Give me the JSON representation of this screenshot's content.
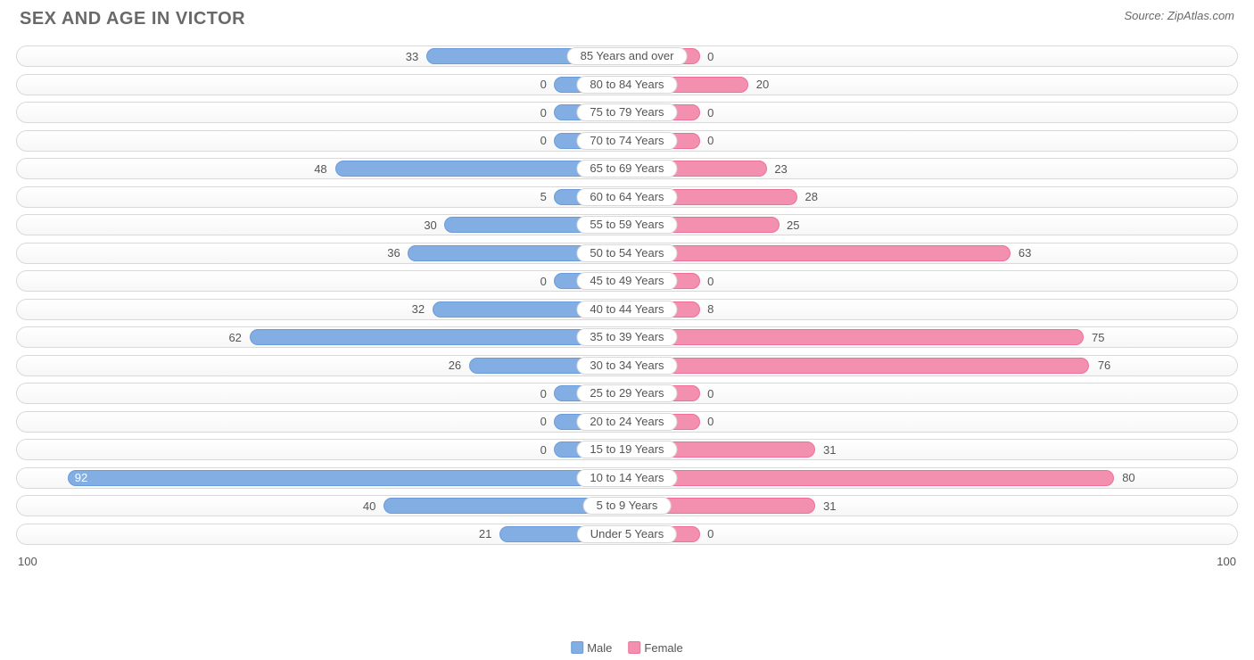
{
  "title": "SEX AND AGE IN VICTOR",
  "source": "Source: ZipAtlas.com",
  "chart": {
    "type": "population-pyramid-bar",
    "axis_max": 100,
    "axis_left_label": "100",
    "axis_right_label": "100",
    "min_bar_pct": 12,
    "colors": {
      "male_fill": "#82aee3",
      "male_border": "#6b9bd8",
      "female_fill": "#f390b0",
      "female_border": "#ef6f98",
      "track_border": "#d9d9d9",
      "text": "#555555",
      "title_text": "#696969"
    },
    "legend": [
      {
        "label": "Male",
        "fill": "#82aee3",
        "border": "#6b9bd8"
      },
      {
        "label": "Female",
        "fill": "#f390b0",
        "border": "#ef6f98"
      }
    ],
    "rows": [
      {
        "label": "85 Years and over",
        "male": 33,
        "female": 0
      },
      {
        "label": "80 to 84 Years",
        "male": 0,
        "female": 20
      },
      {
        "label": "75 to 79 Years",
        "male": 0,
        "female": 0
      },
      {
        "label": "70 to 74 Years",
        "male": 0,
        "female": 0
      },
      {
        "label": "65 to 69 Years",
        "male": 48,
        "female": 23
      },
      {
        "label": "60 to 64 Years",
        "male": 5,
        "female": 28
      },
      {
        "label": "55 to 59 Years",
        "male": 30,
        "female": 25
      },
      {
        "label": "50 to 54 Years",
        "male": 36,
        "female": 63
      },
      {
        "label": "45 to 49 Years",
        "male": 0,
        "female": 0
      },
      {
        "label": "40 to 44 Years",
        "male": 32,
        "female": 8
      },
      {
        "label": "35 to 39 Years",
        "male": 62,
        "female": 75
      },
      {
        "label": "30 to 34 Years",
        "male": 26,
        "female": 76
      },
      {
        "label": "25 to 29 Years",
        "male": 0,
        "female": 0
      },
      {
        "label": "20 to 24 Years",
        "male": 0,
        "female": 0
      },
      {
        "label": "15 to 19 Years",
        "male": 0,
        "female": 31
      },
      {
        "label": "10 to 14 Years",
        "male": 92,
        "female": 80
      },
      {
        "label": "5 to 9 Years",
        "male": 40,
        "female": 31
      },
      {
        "label": "Under 5 Years",
        "male": 21,
        "female": 0
      }
    ]
  }
}
